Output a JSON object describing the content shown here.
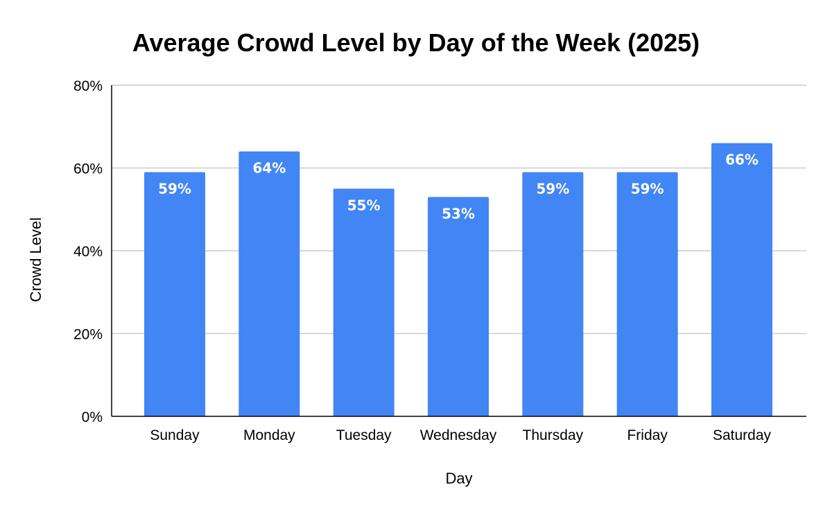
{
  "chart_data": {
    "type": "bar",
    "title": "Average Crowd Level by Day of the Week (2025)",
    "xlabel": "Day",
    "ylabel": "Crowd Level",
    "categories": [
      "Sunday",
      "Monday",
      "Tuesday",
      "Wednesday",
      "Thursday",
      "Friday",
      "Saturday"
    ],
    "values": [
      59,
      64,
      55,
      53,
      59,
      59,
      66
    ],
    "data_labels": [
      "59%",
      "64%",
      "55%",
      "53%",
      "59%",
      "59%",
      "66%"
    ],
    "ylim": [
      0,
      80
    ],
    "y_ticks": [
      0,
      20,
      40,
      60,
      80
    ],
    "y_tick_labels": [
      "0%",
      "20%",
      "40%",
      "60%",
      "80%"
    ],
    "value_unit": "%",
    "grid": true,
    "legend": "none",
    "colors": {
      "bar": "#4285f4",
      "grid": "#cccccc",
      "axis": "#000000",
      "data_label": "#ffffff"
    }
  }
}
